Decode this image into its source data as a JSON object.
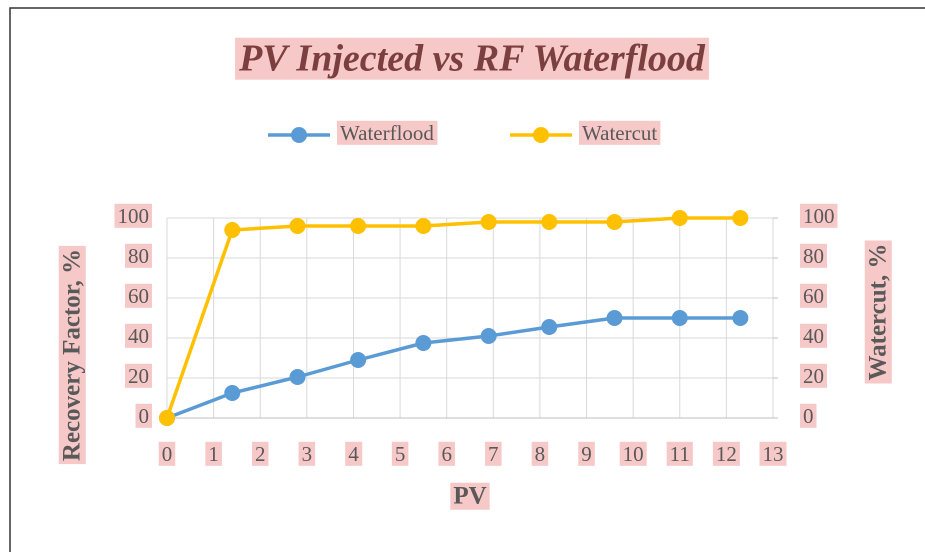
{
  "chart_data": {
    "type": "line",
    "title": "PV Injected vs RF Waterflood",
    "x_label": "PV",
    "y_label": "Recovery Factor, %",
    "y2_label": "Watercut, %",
    "x": [
      0,
      1.4,
      2.8,
      4.1,
      5.5,
      6.9,
      8.2,
      9.6,
      11,
      12.3
    ],
    "series": [
      {
        "name": "Waterflood",
        "color": "#5b9bd5",
        "values": [
          0,
          12.5,
          20.5,
          29,
          37.5,
          41,
          45.5,
          50,
          50,
          50
        ]
      },
      {
        "name": "Watercut",
        "color": "#ffc000",
        "axis": "y2",
        "values": [
          0,
          94,
          96,
          96,
          96,
          98,
          98,
          98,
          100,
          100
        ]
      }
    ],
    "xlim": [
      0,
      13
    ],
    "xticks": [
      0,
      1,
      2,
      3,
      4,
      5,
      6,
      7,
      8,
      9,
      10,
      11,
      12,
      13
    ],
    "ylim": [
      0,
      100
    ],
    "yticks": [
      0,
      20,
      40,
      60,
      80,
      100
    ],
    "y2lim": [
      0,
      100
    ],
    "y2ticks": [
      0,
      20,
      40,
      60,
      80,
      100
    ],
    "grid": true,
    "legend": "top"
  }
}
